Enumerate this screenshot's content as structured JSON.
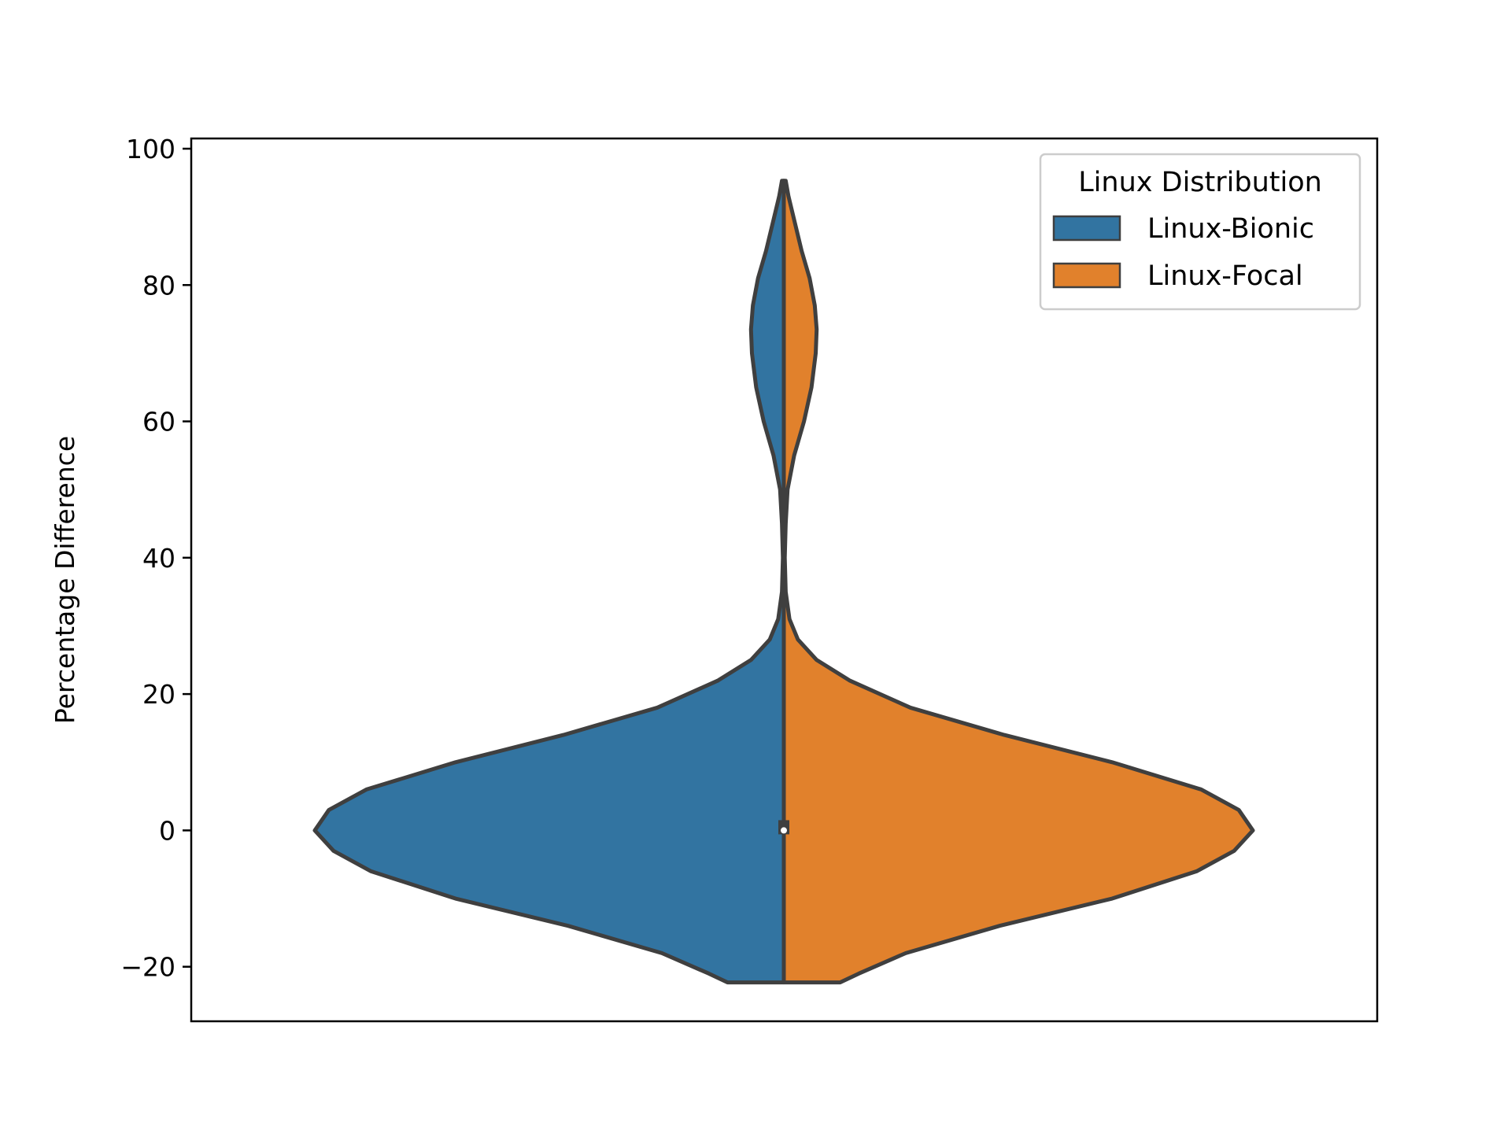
{
  "chart_data": {
    "type": "violin",
    "title": "",
    "xlabel": "",
    "ylabel": "Percentage Difference",
    "ylim": [
      -28,
      101.5
    ],
    "yticks": [
      -20,
      0,
      20,
      40,
      60,
      80,
      100
    ],
    "ytick_labels": [
      "−20",
      "0",
      "20",
      "40",
      "60",
      "80",
      "100"
    ],
    "grid": false,
    "split": true,
    "legend": {
      "title": "Linux Distribution",
      "placement": "top-right",
      "entries": [
        {
          "label": "Linux-Bionic",
          "color": "#3274a1"
        },
        {
          "label": "Linux-Focal",
          "color": "#e1812c"
        }
      ]
    },
    "series": [
      {
        "name": "Linux-Bionic",
        "side": "left",
        "color": "#3274a1",
        "y_min": -22.3,
        "y_max": 95.3,
        "density_profile": [
          [
            -22.3,
            0.12
          ],
          [
            -21,
            0.16
          ],
          [
            -18,
            0.26
          ],
          [
            -14,
            0.46
          ],
          [
            -10,
            0.7
          ],
          [
            -6,
            0.88
          ],
          [
            -3,
            0.96
          ],
          [
            0,
            1.0
          ],
          [
            3,
            0.97
          ],
          [
            6,
            0.89
          ],
          [
            10,
            0.7
          ],
          [
            14,
            0.47
          ],
          [
            18,
            0.27
          ],
          [
            22,
            0.14
          ],
          [
            25,
            0.07
          ],
          [
            28,
            0.03
          ],
          [
            31,
            0.012
          ],
          [
            35,
            0.004
          ],
          [
            40,
            0.002
          ],
          [
            45,
            0.004
          ],
          [
            50,
            0.008
          ],
          [
            55,
            0.022
          ],
          [
            60,
            0.043
          ],
          [
            65,
            0.059
          ],
          [
            70,
            0.068
          ],
          [
            73.5,
            0.07
          ],
          [
            77,
            0.066
          ],
          [
            81,
            0.055
          ],
          [
            85,
            0.038
          ],
          [
            89,
            0.024
          ],
          [
            93,
            0.01
          ],
          [
            95.3,
            0.004
          ]
        ],
        "median": 0,
        "q1": -0.5,
        "q3": 1.5
      },
      {
        "name": "Linux-Focal",
        "side": "right",
        "color": "#e1812c",
        "y_min": -22.3,
        "y_max": 95.3,
        "density_profile": [
          [
            -22.3,
            0.12
          ],
          [
            -21,
            0.16
          ],
          [
            -18,
            0.26
          ],
          [
            -14,
            0.46
          ],
          [
            -10,
            0.7
          ],
          [
            -6,
            0.88
          ],
          [
            -3,
            0.96
          ],
          [
            0,
            1.0
          ],
          [
            3,
            0.97
          ],
          [
            6,
            0.89
          ],
          [
            10,
            0.7
          ],
          [
            14,
            0.47
          ],
          [
            18,
            0.27
          ],
          [
            22,
            0.14
          ],
          [
            25,
            0.07
          ],
          [
            28,
            0.03
          ],
          [
            31,
            0.012
          ],
          [
            35,
            0.004
          ],
          [
            40,
            0.002
          ],
          [
            45,
            0.004
          ],
          [
            50,
            0.008
          ],
          [
            55,
            0.022
          ],
          [
            60,
            0.043
          ],
          [
            65,
            0.059
          ],
          [
            70,
            0.068
          ],
          [
            73.5,
            0.07
          ],
          [
            77,
            0.066
          ],
          [
            81,
            0.055
          ],
          [
            85,
            0.038
          ],
          [
            89,
            0.024
          ],
          [
            93,
            0.01
          ],
          [
            95.3,
            0.004
          ]
        ],
        "median": 0,
        "q1": -0.5,
        "q3": 1.5
      }
    ]
  }
}
